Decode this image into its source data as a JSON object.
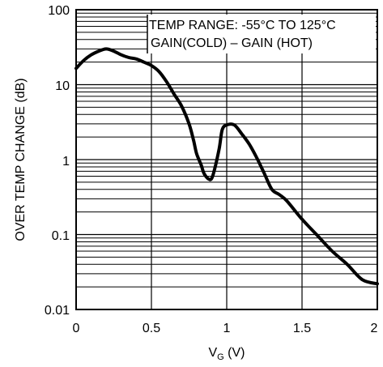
{
  "chart_data": {
    "type": "line",
    "title": "",
    "xlabel_main": "V",
    "xlabel_sub": "G",
    "xlabel_unit": " (V)",
    "ylabel": "OVER TEMP CHANGE (dB)",
    "xlim": [
      0,
      2
    ],
    "ylim": [
      0.01,
      100
    ],
    "yscale": "log",
    "grid": true,
    "x_ticks": [
      "0",
      "0.5",
      "1",
      "1.5",
      "2"
    ],
    "y_ticks": [
      "0.01",
      "0.1",
      "1",
      "10",
      "100"
    ],
    "annotations": [
      "TEMP RANGE: -55°C TO 125°C",
      "GAIN(COLD) – GAIN (HOT)"
    ],
    "series": [
      {
        "x": [
          0,
          0.05,
          0.1,
          0.15,
          0.2,
          0.25,
          0.3,
          0.35,
          0.4,
          0.45,
          0.5,
          0.55,
          0.6,
          0.65,
          0.7,
          0.75,
          0.78,
          0.8,
          0.83,
          0.85,
          0.88,
          0.9,
          0.92,
          0.95,
          0.97,
          1.0,
          1.05,
          1.1,
          1.15,
          1.2,
          1.25,
          1.3,
          1.35,
          1.4,
          1.5,
          1.6,
          1.7,
          1.8,
          1.9,
          2.0
        ],
        "y": [
          16.5,
          21,
          25,
          28,
          30,
          28,
          25,
          23,
          22,
          20,
          18,
          15,
          11,
          7.5,
          5.2,
          3,
          1.8,
          1.2,
          0.85,
          0.65,
          0.55,
          0.56,
          0.75,
          1.4,
          2.5,
          2.9,
          2.9,
          2.2,
          1.6,
          1.05,
          0.65,
          0.4,
          0.34,
          0.28,
          0.16,
          0.098,
          0.06,
          0.04,
          0.025,
          0.022
        ]
      }
    ]
  }
}
